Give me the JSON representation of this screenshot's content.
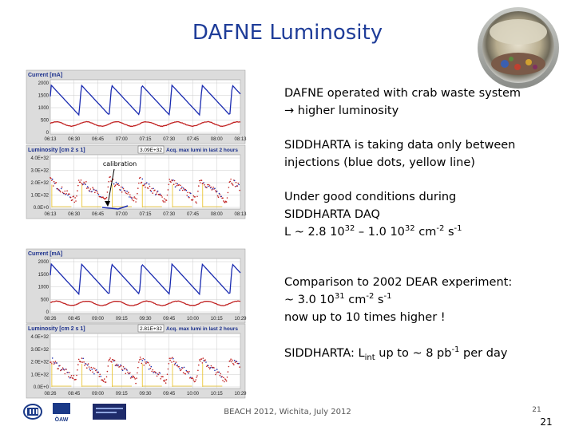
{
  "header": {
    "title": "DAFNE Luminosity"
  },
  "panels": [
    {
      "title": "Current [mA]",
      "kind": "current",
      "yticks": [
        "2000",
        "1500",
        "1000",
        "500",
        "0"
      ],
      "xticks": [
        "06:13",
        "06:30",
        "06:45",
        "07:00",
        "07:15",
        "07:30",
        "07:45",
        "08:00",
        "08:13"
      ]
    },
    {
      "title": "Luminosity [cm 2 s 1]",
      "kind": "luminosity",
      "max_box": "3.09E+32",
      "max_note": "Acq. max lumi in last 2 hours",
      "annotation": "calibration",
      "yticks": [
        "4.0E+32",
        "3.0E+32",
        "2.0E+32",
        "1.0E+32",
        "0.0E+0"
      ],
      "xticks": [
        "06:13",
        "06:30",
        "06:45",
        "07:00",
        "07:15",
        "07:30",
        "07:45",
        "08:00",
        "08:13"
      ]
    },
    {
      "title": "Current [mA]",
      "kind": "current",
      "yticks": [
        "2000",
        "1500",
        "1000",
        "500",
        "0"
      ],
      "xticks": [
        "08:26",
        "08:45",
        "09:00",
        "09:15",
        "09:30",
        "09:45",
        "10:00",
        "10:15",
        "10:29"
      ]
    },
    {
      "title": "Luminosity [cm 2 s 1]",
      "kind": "luminosity",
      "max_box": "2.81E+32",
      "max_note": "Acq. max lumi in last 2 hours",
      "yticks": [
        "4.0E+32",
        "3.0E+32",
        "2.0E+32",
        "1.0E+32",
        "0.0E+0"
      ],
      "xticks": [
        "08:26",
        "08:45",
        "09:00",
        "09:15",
        "09:30",
        "09:45",
        "10:00",
        "10:15",
        "10:29"
      ]
    }
  ],
  "paragraphs": [
    {
      "lines": [
        [
          {
            "text": "DAFNE operated with crab waste system"
          }
        ],
        [
          {
            "text": "→ higher luminosity"
          }
        ]
      ]
    },
    {
      "lines": [
        [
          {
            "text": "SIDDHARTA is taking data only between"
          }
        ],
        [
          {
            "text": "injections (blue dots, yellow line)"
          }
        ]
      ]
    },
    {
      "lines": [
        [
          {
            "text": "Under good conditions during"
          }
        ],
        [
          {
            "text": "SIDDHARTA DAQ"
          }
        ],
        [
          {
            "text": "L ~ 2.8 10"
          },
          {
            "text": "32",
            "style": "sup"
          },
          {
            "text": " – 1.0 10"
          },
          {
            "text": "32",
            "style": "sup"
          },
          {
            "text": " cm"
          },
          {
            "text": "-2",
            "style": "sup"
          },
          {
            "text": " s"
          },
          {
            "text": "-1",
            "style": "sup"
          }
        ]
      ]
    },
    {
      "lines": [
        [
          {
            "text": "Comparison to 2002 DEAR experiment:"
          }
        ],
        [
          {
            "text": "~ 3.0 10"
          },
          {
            "text": "31",
            "style": "sup"
          },
          {
            "text": " cm"
          },
          {
            "text": "-2",
            "style": "sup"
          },
          {
            "text": " s"
          },
          {
            "text": "-1",
            "style": "sup"
          }
        ],
        [
          {
            "text": " now up to 10 times higher !"
          }
        ]
      ]
    },
    {
      "lines": [
        [
          {
            "text": "SIDDHARTA: L"
          },
          {
            "text": "int",
            "style": "sub"
          },
          {
            "text": " up to ~ 8 pb"
          },
          {
            "text": "-1",
            "style": "sup"
          },
          {
            "text": " per day"
          }
        ]
      ]
    }
  ],
  "footer": {
    "text": "BEACH 2012, Wichita, July 2012",
    "page_small": "21",
    "page": "21",
    "logo_text": "ÖAW"
  }
}
